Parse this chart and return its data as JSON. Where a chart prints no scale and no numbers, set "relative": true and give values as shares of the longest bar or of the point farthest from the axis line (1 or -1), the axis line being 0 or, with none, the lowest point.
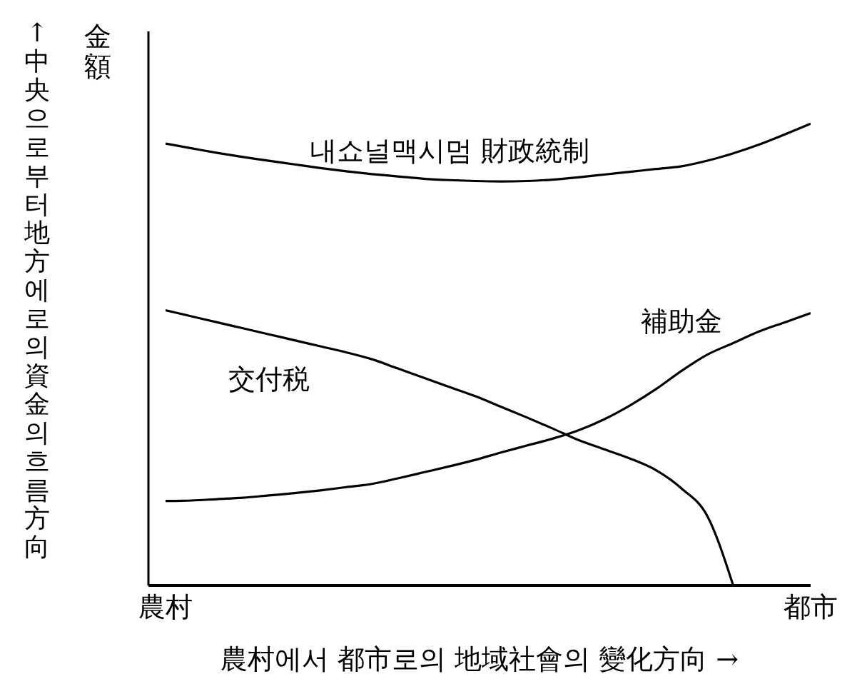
{
  "chart_data": {
    "type": "line",
    "relative": true,
    "ylabel": "金額",
    "xlabel": "農村에서 都市로의 地域社會의 變化方向 →",
    "annotations": [
      "↑中央으로부터 地方에로의 資金의 흐름方向"
    ],
    "categories": [
      "農村",
      null,
      null,
      null,
      null,
      null,
      null,
      null,
      null,
      null,
      null,
      null,
      null,
      null,
      null,
      null,
      null,
      null,
      null,
      null,
      null,
      null,
      null,
      null,
      null,
      "都市"
    ],
    "series": [
      {
        "name": "내쇼널맥시멈 財政統制",
        "color": "#000000",
        "values": [
          0.957,
          0.947,
          0.937,
          0.928,
          0.92,
          0.912,
          0.904,
          0.897,
          0.891,
          0.886,
          0.881,
          0.878,
          0.876,
          0.875,
          0.876,
          0.879,
          0.884,
          0.89,
          0.896,
          0.902,
          0.908,
          0.92,
          0.936,
          0.955,
          0.977,
          1
        ]
      },
      {
        "name": "交付税",
        "color": "#000000",
        "values": [
          0.596,
          0.583,
          0.57,
          0.557,
          0.544,
          0.531,
          0.518,
          0.505,
          0.49,
          0.47,
          0.45,
          0.43,
          0.41,
          0.387,
          0.364,
          0.34,
          0.315,
          0.295,
          0.275,
          0.25,
          0.21,
          0.15,
          0,
          null,
          null,
          null
        ]
      },
      {
        "name": "補助金",
        "color": "#000000",
        "values": [
          0.183,
          0.184,
          0.187,
          0.19,
          0.195,
          0.2,
          0.206,
          0.213,
          0.22,
          0.232,
          0.245,
          0.258,
          0.272,
          0.288,
          0.303,
          0.318,
          0.336,
          0.36,
          0.39,
          0.425,
          0.465,
          0.5,
          0.525,
          0.55,
          0.57,
          0.59
        ]
      }
    ],
    "legend": false,
    "marker": "none",
    "line_style": "solid"
  }
}
